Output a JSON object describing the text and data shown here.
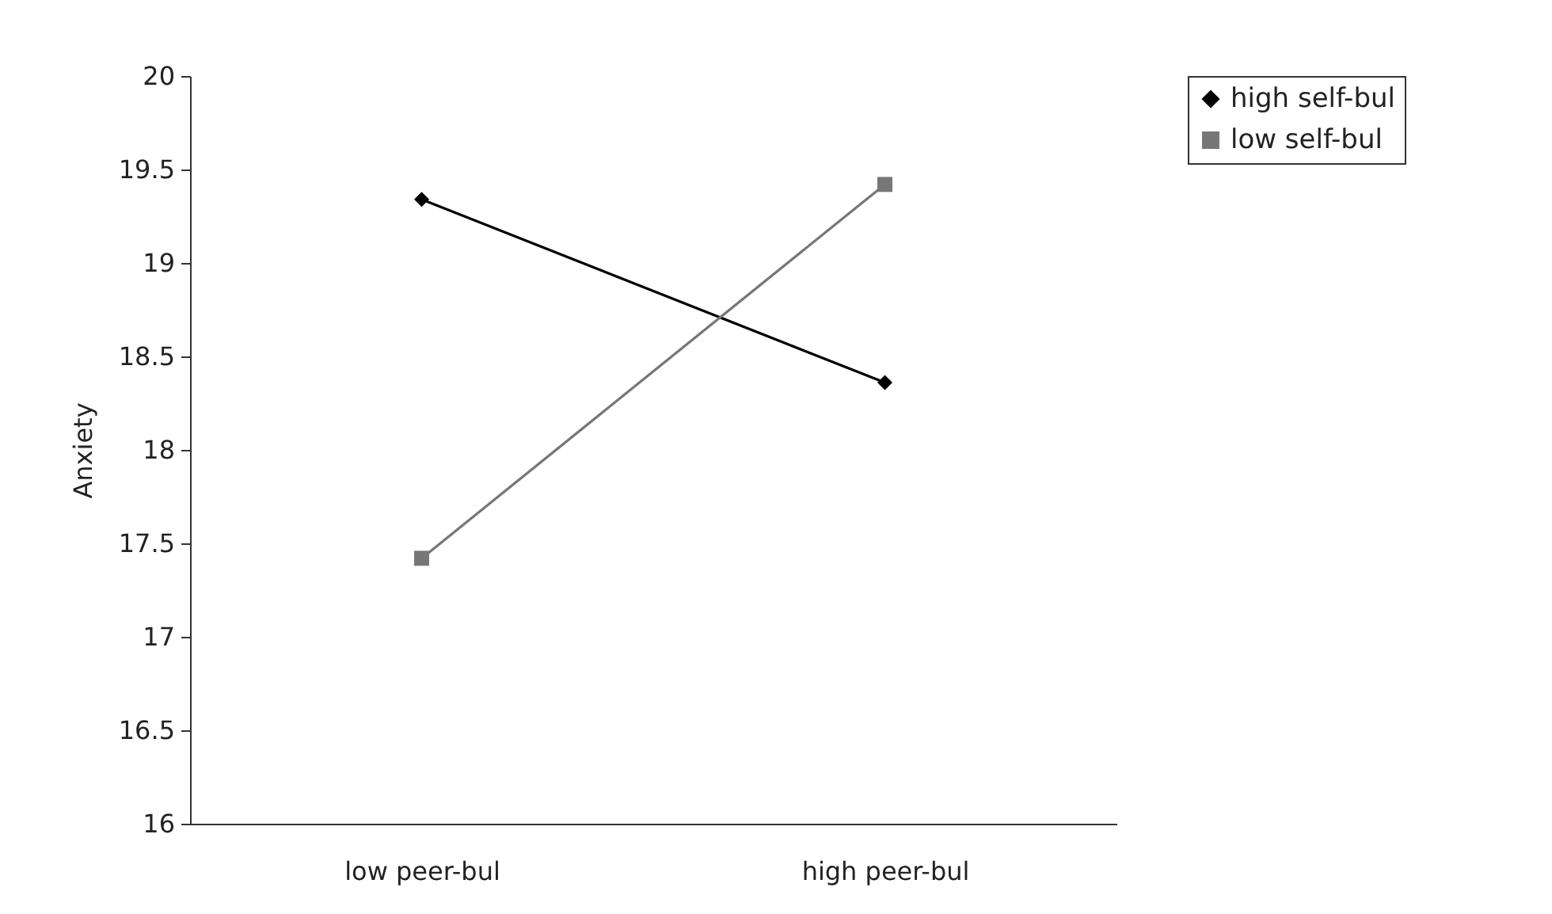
{
  "chart_data": {
    "type": "line",
    "ylabel": "Anxiety",
    "categories": [
      "low peer-bul",
      "high peer-bul"
    ],
    "series": [
      {
        "name": "high self-bul",
        "color": "#000000",
        "marker": "diamond",
        "values": [
          19.34,
          18.36
        ]
      },
      {
        "name": "low self-bul",
        "color": "#777777",
        "marker": "square",
        "values": [
          17.42,
          19.42
        ]
      }
    ],
    "ylim": [
      16,
      20
    ],
    "yticks": [
      16,
      16.5,
      17,
      17.5,
      18,
      18.5,
      19,
      19.5,
      20
    ],
    "grid": false,
    "legend": "right",
    "line_style": "solid"
  }
}
